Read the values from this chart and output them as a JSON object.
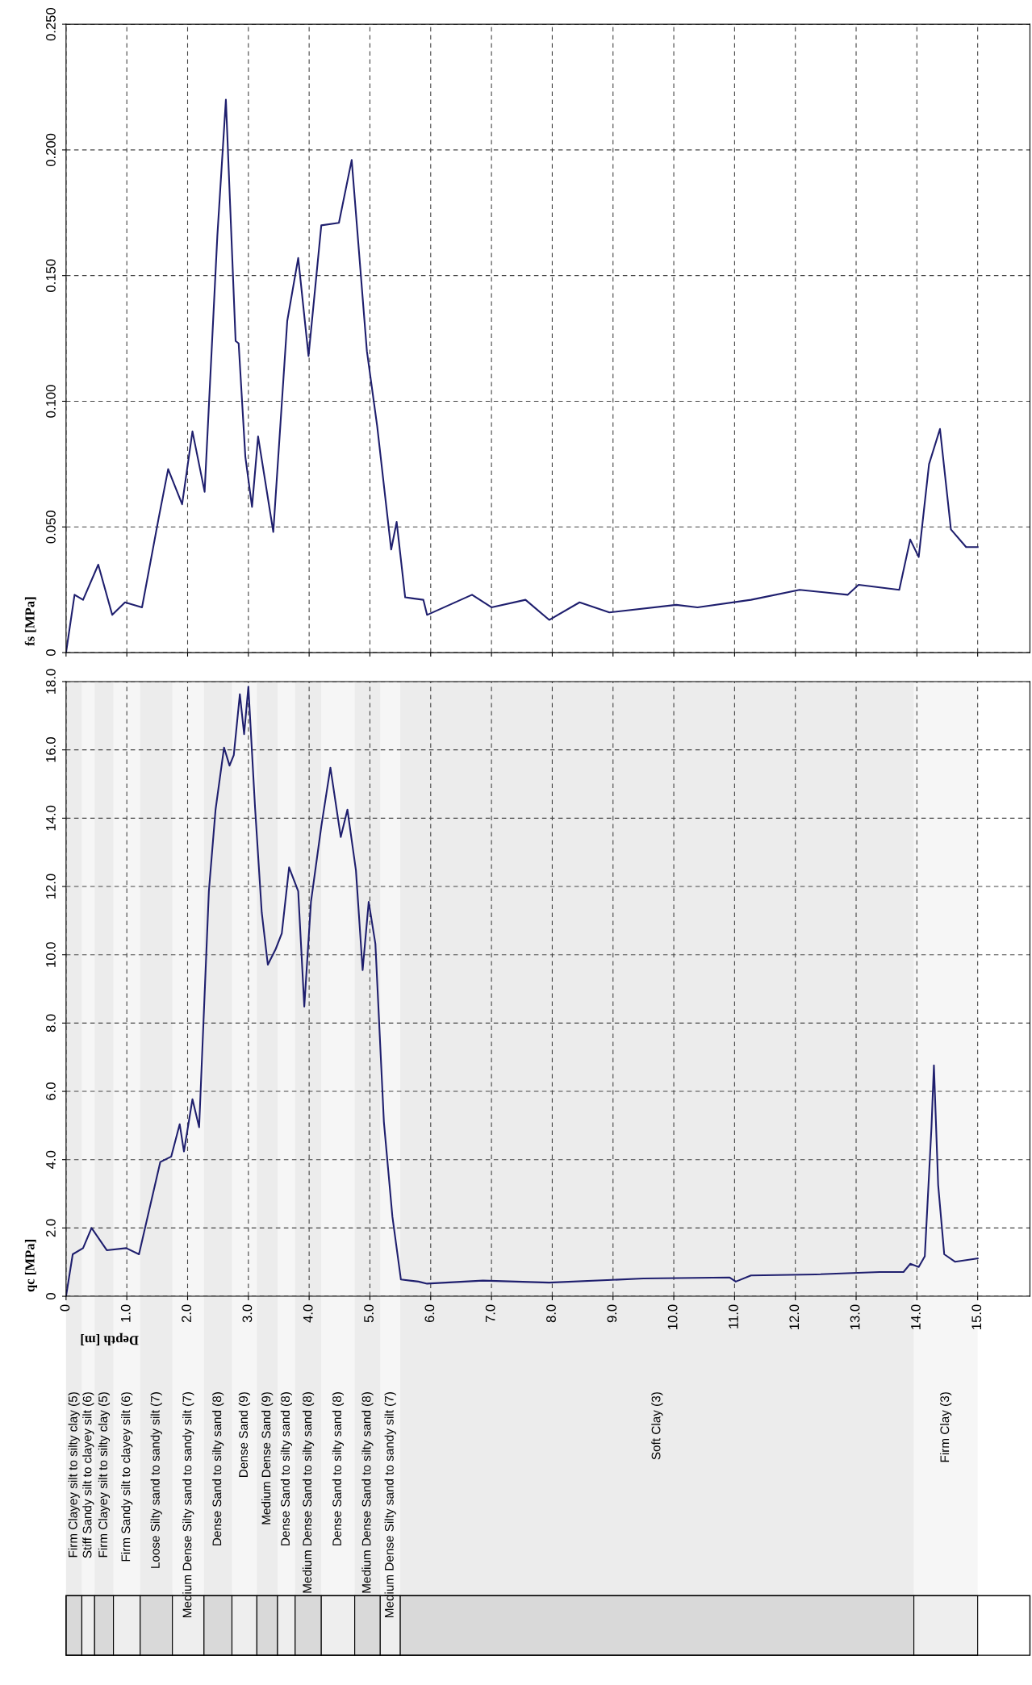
{
  "chart_data": [
    {
      "type": "line",
      "ylabel": "fs [MPa]",
      "xlim": [
        0,
        15.86
      ],
      "ylim": [
        0,
        0.25
      ],
      "xticks": [
        0,
        1,
        2,
        3,
        4,
        5,
        6,
        7,
        8,
        9,
        10,
        11,
        12,
        13,
        14,
        15
      ],
      "yticks": [
        {
          "value": 0,
          "label": "0"
        },
        {
          "value": 0.05,
          "label": "0.050"
        },
        {
          "value": 0.1,
          "label": "0.100"
        },
        {
          "value": 0.15,
          "label": "0.150"
        },
        {
          "value": 0.2,
          "label": "0.200"
        },
        {
          "value": 0.25,
          "label": "0.250"
        }
      ],
      "grid": true,
      "tick_labels": "y",
      "line_style": "solid",
      "series": [
        {
          "color": "#1f1f6e",
          "x": [
            0,
            0.14,
            0.28,
            0.53,
            0.76,
            0.97,
            1.25,
            1.52,
            1.68,
            1.91,
            2.08,
            2.28,
            2.49,
            2.63,
            2.79,
            2.84,
            2.95,
            3.06,
            3.16,
            3.41,
            3.64,
            3.82,
            3.99,
            4.2,
            4.49,
            4.7,
            4.95,
            5.12,
            5.35,
            5.44,
            5.58,
            5.88,
            5.94,
            6.68,
            7.0,
            7.56,
            7.95,
            8.45,
            8.94,
            10.04,
            10.39,
            11.27,
            12.07,
            12.86,
            13.04,
            13.71,
            13.89,
            14.03,
            14.2,
            14.38,
            14.56,
            14.81,
            15.0
          ],
          "values": [
            0,
            0.023,
            0.021,
            0.035,
            0.015,
            0.02,
            0.018,
            0.053,
            0.073,
            0.059,
            0.088,
            0.064,
            0.166,
            0.22,
            0.124,
            0.123,
            0.078,
            0.058,
            0.086,
            0.048,
            0.132,
            0.157,
            0.118,
            0.17,
            0.171,
            0.196,
            0.12,
            0.09,
            0.041,
            0.052,
            0.022,
            0.021,
            0.015,
            0.023,
            0.018,
            0.021,
            0.013,
            0.02,
            0.016,
            0.019,
            0.018,
            0.021,
            0.025,
            0.023,
            0.027,
            0.025,
            0.045,
            0.038,
            0.075,
            0.089,
            0.049,
            0.042,
            0.042
          ]
        }
      ]
    },
    {
      "type": "line",
      "ylabel": "qc [MPa]",
      "xlabel": "Depth [m]",
      "xlim": [
        0,
        15.86
      ],
      "ylim": [
        0,
        18
      ],
      "xticks": [
        {
          "value": 0,
          "label": "0"
        },
        {
          "value": 1,
          "label": "1.0"
        },
        {
          "value": 2,
          "label": "2.0"
        },
        {
          "value": 3,
          "label": "3.0"
        },
        {
          "value": 4,
          "label": "4.0"
        },
        {
          "value": 5,
          "label": "5.0"
        },
        {
          "value": 6,
          "label": "6.0"
        },
        {
          "value": 7,
          "label": "7.0"
        },
        {
          "value": 8,
          "label": "8.0"
        },
        {
          "value": 9,
          "label": "9.0"
        },
        {
          "value": 10,
          "label": "10.0"
        },
        {
          "value": 11,
          "label": "11.0"
        },
        {
          "value": 12,
          "label": "12.0"
        },
        {
          "value": 13,
          "label": "13.0"
        },
        {
          "value": 14,
          "label": "14.0"
        },
        {
          "value": 15,
          "label": "15.0"
        }
      ],
      "yticks": [
        {
          "value": 0,
          "label": "0"
        },
        {
          "value": 2,
          "label": "2.0"
        },
        {
          "value": 4,
          "label": "4.0"
        },
        {
          "value": 6,
          "label": "6.0"
        },
        {
          "value": 8,
          "label": "8.0"
        },
        {
          "value": 10,
          "label": "10.0"
        },
        {
          "value": 12,
          "label": "12.0"
        },
        {
          "value": 14,
          "label": "14.0"
        },
        {
          "value": 16,
          "label": "16.0"
        },
        {
          "value": 18,
          "label": "18.0"
        }
      ],
      "grid": true,
      "line_style": "solid",
      "series": [
        {
          "color": "#1f1f6e",
          "x": [
            0,
            0.11,
            0.28,
            0.42,
            0.67,
            0.99,
            1.2,
            1.55,
            1.73,
            1.87,
            1.94,
            2.08,
            2.19,
            2.35,
            2.46,
            2.6,
            2.69,
            2.76,
            2.86,
            2.93,
            3.0,
            3.11,
            3.22,
            3.32,
            3.45,
            3.55,
            3.67,
            3.82,
            3.92,
            4.03,
            4.2,
            4.35,
            4.52,
            4.63,
            4.77,
            4.88,
            4.98,
            5.09,
            5.23,
            5.37,
            5.51,
            5.8,
            5.94,
            6.86,
            7.95,
            9.5,
            10.92,
            11.02,
            11.27,
            12.33,
            13.39,
            13.78,
            13.89,
            14.03,
            14.13,
            14.24,
            14.28,
            14.35,
            14.45,
            14.63,
            15.0
          ],
          "values": [
            0,
            1.23,
            1.41,
            2.0,
            1.35,
            1.41,
            1.23,
            3.93,
            4.09,
            5.04,
            4.24,
            5.77,
            4.95,
            11.86,
            14.25,
            16.07,
            15.54,
            15.85,
            17.63,
            16.46,
            17.85,
            14.31,
            11.24,
            9.71,
            10.17,
            10.63,
            12.56,
            11.86,
            8.48,
            11.55,
            13.76,
            15.48,
            13.45,
            14.25,
            12.47,
            9.55,
            11.55,
            10.32,
            5.1,
            2.33,
            0.49,
            0.43,
            0.37,
            0.46,
            0.4,
            0.52,
            0.55,
            0.43,
            0.61,
            0.64,
            0.71,
            0.71,
            0.95,
            0.86,
            1.17,
            4.95,
            6.76,
            3.26,
            1.23,
            1.01,
            1.11
          ]
        }
      ],
      "bands": [
        {
          "axis": "x",
          "from": 0,
          "to": 0.26,
          "label": "Firm Clayey silt to silty clay (5)",
          "color": "#d9d9d9"
        },
        {
          "axis": "x",
          "from": 0.26,
          "to": 0.47,
          "label": "Stiff Sandy silt to clayey silt (6)",
          "color": "#eeeeee"
        },
        {
          "axis": "x",
          "from": 0.47,
          "to": 0.78,
          "label": "Firm Clayey silt to silty clay (5)",
          "color": "#d9d9d9"
        },
        {
          "axis": "x",
          "from": 0.78,
          "to": 1.22,
          "label": "Firm Sandy silt to clayey silt (6)",
          "color": "#eeeeee"
        },
        {
          "axis": "x",
          "from": 1.22,
          "to": 1.75,
          "label": "Loose Silty sand to sandy silt (7)",
          "color": "#d9d9d9"
        },
        {
          "axis": "x",
          "from": 1.75,
          "to": 2.27,
          "label": "Medium Dense Silty sand to sandy silt (7)",
          "color": "#eeeeee"
        },
        {
          "axis": "x",
          "from": 2.27,
          "to": 2.73,
          "label": "Dense Sand to silty sand (8)",
          "color": "#d9d9d9"
        },
        {
          "axis": "x",
          "from": 2.73,
          "to": 3.14,
          "label": "Dense Sand (9)",
          "color": "#eeeeee"
        },
        {
          "axis": "x",
          "from": 3.14,
          "to": 3.48,
          "label": "Medium Dense Sand (9)",
          "color": "#d9d9d9"
        },
        {
          "axis": "x",
          "from": 3.48,
          "to": 3.77,
          "label": "Dense Sand to silty sand (8)",
          "color": "#eeeeee"
        },
        {
          "axis": "x",
          "from": 3.77,
          "to": 4.2,
          "label": "Medium Dense Sand to silty sand (8)",
          "color": "#d9d9d9"
        },
        {
          "axis": "x",
          "from": 4.2,
          "to": 4.75,
          "label": "Dense Sand to silty sand (8)",
          "color": "#eeeeee"
        },
        {
          "axis": "x",
          "from": 4.75,
          "to": 5.17,
          "label": "Medium Dense Sand to silty sand (8)",
          "color": "#d9d9d9"
        },
        {
          "axis": "x",
          "from": 5.17,
          "to": 5.5,
          "label": "Medium Dense Silty sand to sandy silt (7)",
          "color": "#eeeeee"
        },
        {
          "axis": "x",
          "from": 5.5,
          "to": 13.95,
          "label": "Soft Clay (3)",
          "color": "#d9d9d9"
        },
        {
          "axis": "x",
          "from": 13.95,
          "to": 15.0,
          "label": "Firm Clay (3)",
          "color": "#eeeeee"
        }
      ]
    }
  ]
}
